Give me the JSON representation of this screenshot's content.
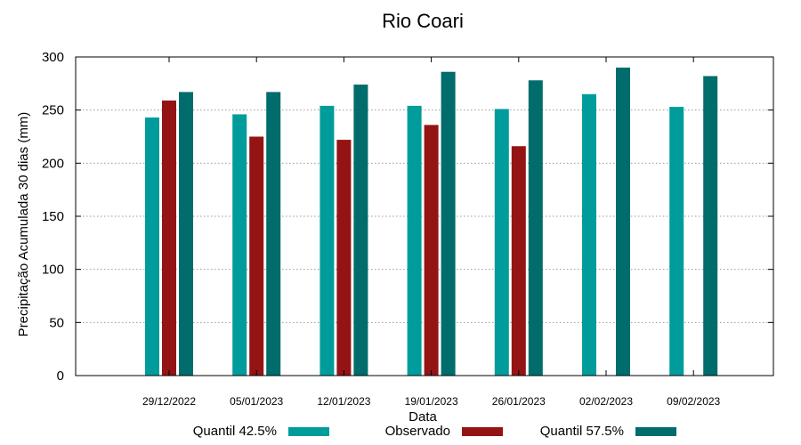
{
  "chart_data": {
    "type": "bar",
    "title": "Rio Coari",
    "xlabel": "Data",
    "ylabel": "Precipitação Acumulada 30 dias (mm)",
    "ylim": [
      0,
      300
    ],
    "yticks": [
      0,
      50,
      100,
      150,
      200,
      250,
      300
    ],
    "grid": true,
    "legend_position": "bottom",
    "categories": [
      "29/12/2022",
      "05/01/2023",
      "12/01/2023",
      "19/01/2023",
      "26/01/2023",
      "02/02/2023",
      "09/02/2023"
    ],
    "series": [
      {
        "name": "Quantil 42.5%",
        "color": "#009c9c",
        "values": [
          243,
          246,
          254,
          254,
          251,
          265,
          253
        ]
      },
      {
        "name": "Observado",
        "color": "#941414",
        "values": [
          259,
          225,
          222,
          236,
          216,
          null,
          null
        ]
      },
      {
        "name": "Quantil 57.5%",
        "color": "#006c6c",
        "values": [
          267,
          267,
          274,
          286,
          278,
          290,
          282
        ]
      }
    ]
  }
}
